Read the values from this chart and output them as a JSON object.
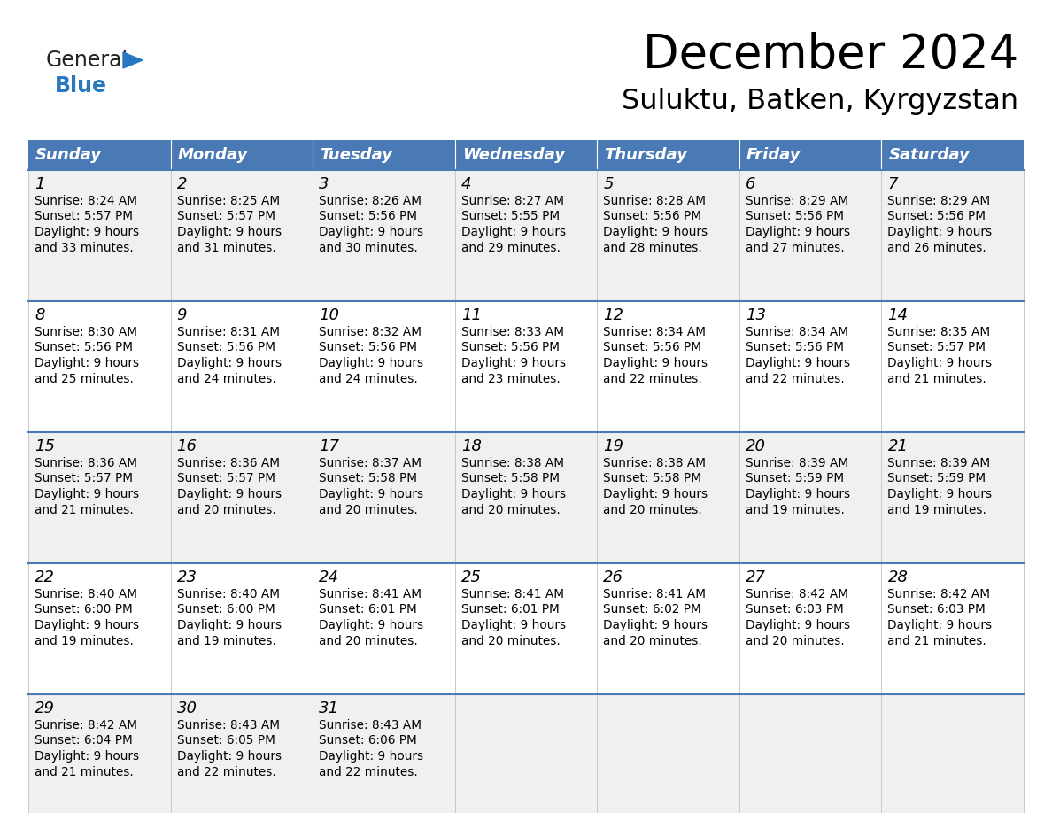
{
  "title": "December 2024",
  "subtitle": "Suluktu, Batken, Kyrgyzstan",
  "header_color": "#4a7ab5",
  "header_text_color": "#FFFFFF",
  "cell_bg_white": "#FFFFFF",
  "cell_bg_gray": "#f0f0f0",
  "border_color": "#4a7ab5",
  "text_color": "#000000",
  "days_of_week": [
    "Sunday",
    "Monday",
    "Tuesday",
    "Wednesday",
    "Thursday",
    "Friday",
    "Saturday"
  ],
  "calendar_data": [
    [
      {
        "day": 1,
        "sunrise": "8:24 AM",
        "sunset": "5:57 PM",
        "daylight_hours": 9,
        "daylight_minutes": 33
      },
      {
        "day": 2,
        "sunrise": "8:25 AM",
        "sunset": "5:57 PM",
        "daylight_hours": 9,
        "daylight_minutes": 31
      },
      {
        "day": 3,
        "sunrise": "8:26 AM",
        "sunset": "5:56 PM",
        "daylight_hours": 9,
        "daylight_minutes": 30
      },
      {
        "day": 4,
        "sunrise": "8:27 AM",
        "sunset": "5:55 PM",
        "daylight_hours": 9,
        "daylight_minutes": 29
      },
      {
        "day": 5,
        "sunrise": "8:28 AM",
        "sunset": "5:56 PM",
        "daylight_hours": 9,
        "daylight_minutes": 28
      },
      {
        "day": 6,
        "sunrise": "8:29 AM",
        "sunset": "5:56 PM",
        "daylight_hours": 9,
        "daylight_minutes": 27
      },
      {
        "day": 7,
        "sunrise": "8:29 AM",
        "sunset": "5:56 PM",
        "daylight_hours": 9,
        "daylight_minutes": 26
      }
    ],
    [
      {
        "day": 8,
        "sunrise": "8:30 AM",
        "sunset": "5:56 PM",
        "daylight_hours": 9,
        "daylight_minutes": 25
      },
      {
        "day": 9,
        "sunrise": "8:31 AM",
        "sunset": "5:56 PM",
        "daylight_hours": 9,
        "daylight_minutes": 24
      },
      {
        "day": 10,
        "sunrise": "8:32 AM",
        "sunset": "5:56 PM",
        "daylight_hours": 9,
        "daylight_minutes": 24
      },
      {
        "day": 11,
        "sunrise": "8:33 AM",
        "sunset": "5:56 PM",
        "daylight_hours": 9,
        "daylight_minutes": 23
      },
      {
        "day": 12,
        "sunrise": "8:34 AM",
        "sunset": "5:56 PM",
        "daylight_hours": 9,
        "daylight_minutes": 22
      },
      {
        "day": 13,
        "sunrise": "8:34 AM",
        "sunset": "5:56 PM",
        "daylight_hours": 9,
        "daylight_minutes": 22
      },
      {
        "day": 14,
        "sunrise": "8:35 AM",
        "sunset": "5:57 PM",
        "daylight_hours": 9,
        "daylight_minutes": 21
      }
    ],
    [
      {
        "day": 15,
        "sunrise": "8:36 AM",
        "sunset": "5:57 PM",
        "daylight_hours": 9,
        "daylight_minutes": 21
      },
      {
        "day": 16,
        "sunrise": "8:36 AM",
        "sunset": "5:57 PM",
        "daylight_hours": 9,
        "daylight_minutes": 20
      },
      {
        "day": 17,
        "sunrise": "8:37 AM",
        "sunset": "5:58 PM",
        "daylight_hours": 9,
        "daylight_minutes": 20
      },
      {
        "day": 18,
        "sunrise": "8:38 AM",
        "sunset": "5:58 PM",
        "daylight_hours": 9,
        "daylight_minutes": 20
      },
      {
        "day": 19,
        "sunrise": "8:38 AM",
        "sunset": "5:58 PM",
        "daylight_hours": 9,
        "daylight_minutes": 20
      },
      {
        "day": 20,
        "sunrise": "8:39 AM",
        "sunset": "5:59 PM",
        "daylight_hours": 9,
        "daylight_minutes": 19
      },
      {
        "day": 21,
        "sunrise": "8:39 AM",
        "sunset": "5:59 PM",
        "daylight_hours": 9,
        "daylight_minutes": 19
      }
    ],
    [
      {
        "day": 22,
        "sunrise": "8:40 AM",
        "sunset": "6:00 PM",
        "daylight_hours": 9,
        "daylight_minutes": 19
      },
      {
        "day": 23,
        "sunrise": "8:40 AM",
        "sunset": "6:00 PM",
        "daylight_hours": 9,
        "daylight_minutes": 19
      },
      {
        "day": 24,
        "sunrise": "8:41 AM",
        "sunset": "6:01 PM",
        "daylight_hours": 9,
        "daylight_minutes": 20
      },
      {
        "day": 25,
        "sunrise": "8:41 AM",
        "sunset": "6:01 PM",
        "daylight_hours": 9,
        "daylight_minutes": 20
      },
      {
        "day": 26,
        "sunrise": "8:41 AM",
        "sunset": "6:02 PM",
        "daylight_hours": 9,
        "daylight_minutes": 20
      },
      {
        "day": 27,
        "sunrise": "8:42 AM",
        "sunset": "6:03 PM",
        "daylight_hours": 9,
        "daylight_minutes": 20
      },
      {
        "day": 28,
        "sunrise": "8:42 AM",
        "sunset": "6:03 PM",
        "daylight_hours": 9,
        "daylight_minutes": 21
      }
    ],
    [
      {
        "day": 29,
        "sunrise": "8:42 AM",
        "sunset": "6:04 PM",
        "daylight_hours": 9,
        "daylight_minutes": 21
      },
      {
        "day": 30,
        "sunrise": "8:43 AM",
        "sunset": "6:05 PM",
        "daylight_hours": 9,
        "daylight_minutes": 22
      },
      {
        "day": 31,
        "sunrise": "8:43 AM",
        "sunset": "6:06 PM",
        "daylight_hours": 9,
        "daylight_minutes": 22
      },
      null,
      null,
      null,
      null
    ]
  ],
  "logo_general_color": "#222222",
  "logo_blue_color": "#2878C0",
  "fig_width": 11.88,
  "fig_height": 9.18,
  "dpi": 100
}
